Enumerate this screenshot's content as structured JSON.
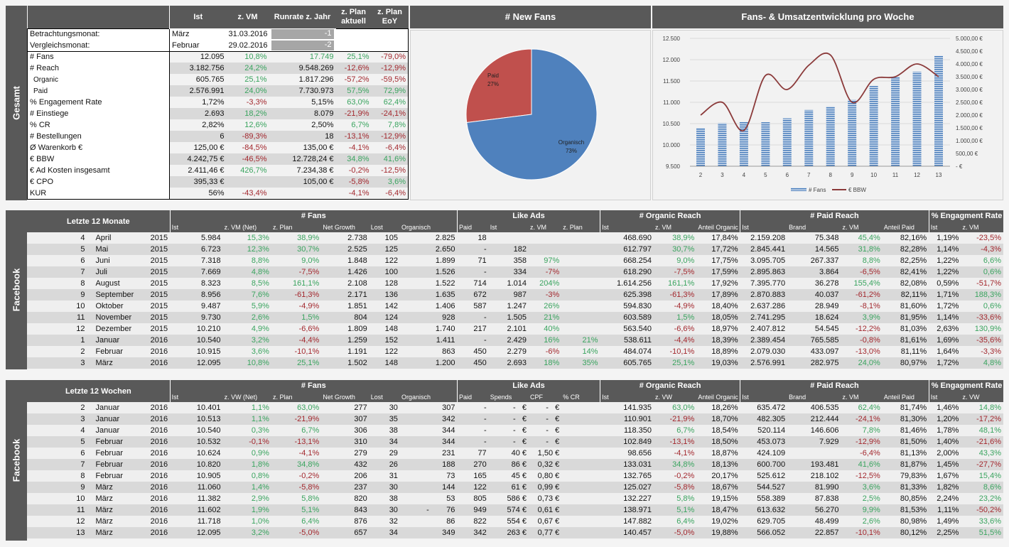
{
  "summary": {
    "side_label": "Gesamt",
    "headers": [
      "Ist",
      "z. VM",
      "Runrate z. Jahr",
      "z. Plan aktuell",
      "z. Plan EoY"
    ],
    "betrachtung": {
      "label": "Betrachtungsmonat:",
      "month": "März",
      "date": "31.03.2016",
      "offset": "-1"
    },
    "vergleich": {
      "label": "Vergleichsmonat:",
      "month": "Februar",
      "date": "29.02.2016",
      "offset": "-2"
    },
    "rows": [
      [
        "# Fans",
        "12.095",
        "10,8%",
        "17.749",
        "25,1%",
        "-79,0%"
      ],
      [
        "# Reach",
        "3.182.756",
        "24,2%",
        "9.548.269",
        "-12,6%",
        "-12,9%"
      ],
      [
        "Organic",
        "605.765",
        "25,1%",
        "1.817.296",
        "-57,2%",
        "-59,5%"
      ],
      [
        "Paid",
        "2.576.991",
        "24,0%",
        "7.730.973",
        "57,5%",
        "72,9%"
      ],
      [
        "% Engagement Rate",
        "1,72%",
        "-3,3%",
        "5,15%",
        "63,0%",
        "62,4%"
      ],
      [
        "# Einstiege",
        "2.693",
        "18,2%",
        "8.079",
        "-21,9%",
        "-24,1%"
      ],
      [
        "% CR",
        "2,82%",
        "12,6%",
        "2,50%",
        "6,7%",
        "7,8%"
      ],
      [
        "# Bestellungen",
        "6",
        "-89,3%",
        "18",
        "-13,1%",
        "-12,9%"
      ],
      [
        "Ø Warenkorb €",
        "125,00 €",
        "-84,5%",
        "135,00 €",
        "-4,1%",
        "-6,4%"
      ],
      [
        "€ BBW",
        "4.242,75 €",
        "-46,5%",
        "12.728,24 €",
        "34,8%",
        "41,6%"
      ],
      [
        "€ Ad Kosten insgesamt",
        "2.411,46 €",
        "426,7%",
        "7.234,38 €",
        "-0,2%",
        "-12,5%"
      ],
      [
        "€ CPO",
        "395,33 €",
        "",
        "105,00 €",
        "-5,8%",
        "3,6%"
      ],
      [
        "KUR",
        "56%",
        "-43,4%",
        "",
        "-4,1%",
        "-6,4%"
      ]
    ]
  },
  "pie": {
    "title": "# New Fans",
    "slices": [
      {
        "label": "Paid",
        "value": 27,
        "pct": "27%",
        "color": "#c0504d"
      },
      {
        "label": "Organisch",
        "value": 73,
        "pct": "73%",
        "color": "#4f81bd"
      }
    ]
  },
  "chart_data": {
    "type": "bar+line",
    "title": "Fans- & Umsatzentwicklung pro Woche",
    "categories": [
      "2",
      "3",
      "4",
      "5",
      "6",
      "7",
      "8",
      "9",
      "10",
      "11",
      "12",
      "13"
    ],
    "series": [
      {
        "name": "# Fans",
        "type": "bar",
        "axis": "left",
        "color": "#4f81bd",
        "values": [
          10401,
          10513,
          10540,
          10532,
          10624,
          10820,
          10905,
          11060,
          11382,
          11602,
          11718,
          12095
        ]
      },
      {
        "name": "€ BBW",
        "type": "line",
        "axis": "right",
        "color": "#8b3a3a",
        "values": [
          2000,
          2500,
          1400,
          3550,
          3000,
          3950,
          4350,
          2500,
          3400,
          3500,
          4000,
          3500
        ]
      }
    ],
    "y_left": {
      "range": [
        9500,
        12500
      ],
      "ticks": [
        "9.500",
        "10.000",
        "10.500",
        "11.000",
        "11.500",
        "12.000",
        "12.500"
      ]
    },
    "y_right": {
      "range": [
        0,
        5000
      ],
      "ticks": [
        "-   €",
        "500,00 €",
        "1.000,00 €",
        "1.500,00 €",
        "2.000,00 €",
        "2.500,00 €",
        "3.000,00 €",
        "3.500,00 €",
        "4.000,00 €",
        "4.500,00 €",
        "5.000,00 €"
      ]
    },
    "grid": true,
    "legend": "bottom"
  },
  "monthly": {
    "side_label": "Facebook",
    "title": "Letzte 12 Monate",
    "groups": [
      "# Fans",
      "Like Ads",
      "# Organic Reach",
      "# Paid Reach",
      "% Engagment Rate"
    ],
    "subheaders": [
      "Ist",
      "z. VM (Net)",
      "z. Plan",
      "Net Growth",
      "Lost",
      "Organisch",
      "Paid",
      "Ist",
      "z. VM",
      "z. Plan",
      "Ist",
      "z. VM",
      "Anteil Organic",
      "Ist",
      "Brand",
      "z. VM",
      "Anteil Paid",
      "Ist",
      "z. VM"
    ],
    "rows": [
      [
        "4",
        "April",
        "2015",
        "5.984",
        "15,3%",
        "38,9%",
        "2.738",
        "105",
        "2.825",
        "18",
        "",
        "",
        "",
        "468.690",
        "38,9%",
        "17,84%",
        "2.159.208",
        "75.348",
        "45,4%",
        "82,16%",
        "1,19%",
        "-23,5%"
      ],
      [
        "5",
        "Mai",
        "2015",
        "6.723",
        "12,3%",
        "30,7%",
        "2.525",
        "125",
        "2.650",
        "-",
        "182",
        "",
        "",
        "612.797",
        "30,7%",
        "17,72%",
        "2.845.441",
        "14.565",
        "31,8%",
        "82,28%",
        "1,14%",
        "-4,3%"
      ],
      [
        "6",
        "Juni",
        "2015",
        "7.318",
        "8,8%",
        "9,0%",
        "1.848",
        "122",
        "1.899",
        "71",
        "358",
        "97%",
        "",
        "668.254",
        "9,0%",
        "17,75%",
        "3.095.705",
        "267.337",
        "8,8%",
        "82,25%",
        "1,22%",
        "6,6%"
      ],
      [
        "7",
        "Juli",
        "2015",
        "7.669",
        "4,8%",
        "-7,5%",
        "1.426",
        "100",
        "1.526",
        "-",
        "334",
        "-7%",
        "",
        "618.290",
        "-7,5%",
        "17,59%",
        "2.895.863",
        "3.864",
        "-6,5%",
        "82,41%",
        "1,22%",
        "0,6%"
      ],
      [
        "8",
        "August",
        "2015",
        "8.323",
        "8,5%",
        "161,1%",
        "2.108",
        "128",
        "1.522",
        "714",
        "1.014",
        "204%",
        "",
        "1.614.256",
        "161,1%",
        "17,92%",
        "7.395.770",
        "36.278",
        "155,4%",
        "82,08%",
        "0,59%",
        "-51,7%"
      ],
      [
        "9",
        "September",
        "2015",
        "8.956",
        "7,6%",
        "-61,3%",
        "2.171",
        "136",
        "1.635",
        "672",
        "987",
        "-3%",
        "",
        "625.398",
        "-61,3%",
        "17,89%",
        "2.870.883",
        "40.037",
        "-61,2%",
        "82,11%",
        "1,71%",
        "188,3%"
      ],
      [
        "10",
        "Oktober",
        "2015",
        "9.487",
        "5,9%",
        "-4,9%",
        "1.851",
        "142",
        "1.406",
        "587",
        "1.247",
        "26%",
        "",
        "594.830",
        "-4,9%",
        "18,40%",
        "2.637.286",
        "28.949",
        "-8,1%",
        "81,60%",
        "1,72%",
        "0,6%"
      ],
      [
        "11",
        "November",
        "2015",
        "9.730",
        "2,6%",
        "1,5%",
        "804",
        "124",
        "928",
        "-",
        "1.505",
        "21%",
        "",
        "603.589",
        "1,5%",
        "18,05%",
        "2.741.295",
        "18.624",
        "3,9%",
        "81,95%",
        "1,14%",
        "-33,6%"
      ],
      [
        "12",
        "Dezember",
        "2015",
        "10.210",
        "4,9%",
        "-6,6%",
        "1.809",
        "148",
        "1.740",
        "217",
        "2.101",
        "40%",
        "",
        "563.540",
        "-6,6%",
        "18,97%",
        "2.407.812",
        "54.545",
        "-12,2%",
        "81,03%",
        "2,63%",
        "130,9%"
      ],
      [
        "1",
        "Januar",
        "2016",
        "10.540",
        "3,2%",
        "-4,4%",
        "1.259",
        "152",
        "1.411",
        "-",
        "2.429",
        "16%",
        "21%",
        "538.611",
        "-4,4%",
        "18,39%",
        "2.389.454",
        "765.585",
        "-0,8%",
        "81,61%",
        "1,69%",
        "-35,6%"
      ],
      [
        "2",
        "Februar",
        "2016",
        "10.915",
        "3,6%",
        "-10,1%",
        "1.191",
        "122",
        "863",
        "450",
        "2.279",
        "-6%",
        "14%",
        "484.074",
        "-10,1%",
        "18,89%",
        "2.079.030",
        "433.097",
        "-13,0%",
        "81,11%",
        "1,64%",
        "-3,3%"
      ],
      [
        "3",
        "März",
        "2016",
        "12.095",
        "10,8%",
        "25,1%",
        "1.502",
        "148",
        "1.200",
        "450",
        "2.693",
        "18%",
        "35%",
        "605.765",
        "25,1%",
        "19,03%",
        "2.576.991",
        "282.975",
        "24,0%",
        "80,97%",
        "1,72%",
        "4,8%"
      ]
    ]
  },
  "weekly": {
    "side_label": "Facebook",
    "title": "Letzte 12 Wochen",
    "groups": [
      "# Fans",
      "Like Ads",
      "# Organic Reach",
      "# Paid Reach",
      "% Engagment Rate"
    ],
    "subheaders": [
      "Ist",
      "z. VW (Net)",
      "z. Plan",
      "Net Growth",
      "Lost",
      "Organisch",
      "Paid",
      "Spends",
      "CPF",
      "% CR",
      "Ist",
      "z. VW",
      "Anteil Organic",
      "Ist",
      "Brand",
      "z. VM",
      "Anteil Paid",
      "Ist",
      "z. VW"
    ],
    "rows": [
      [
        "2",
        "Januar",
        "2016",
        "10.401",
        "1,1%",
        "63,0%",
        "277",
        "30",
        "307",
        "-",
        "-   €",
        "-   €",
        "",
        "141.935",
        "63,0%",
        "18,26%",
        "635.472",
        "406.535",
        "62,4%",
        "81,74%",
        "1,46%",
        "14,8%"
      ],
      [
        "3",
        "Januar",
        "2016",
        "10.513",
        "1,1%",
        "-21,9%",
        "307",
        "35",
        "342",
        "-",
        "-   €",
        "-   €",
        "",
        "110.901",
        "-21,9%",
        "18,70%",
        "482.305",
        "212.444",
        "-24,1%",
        "81,30%",
        "1,20%",
        "-17,2%"
      ],
      [
        "4",
        "Januar",
        "2016",
        "10.540",
        "0,3%",
        "6,7%",
        "306",
        "38",
        "344",
        "-",
        "-   €",
        "-   €",
        "",
        "118.350",
        "6,7%",
        "18,54%",
        "520.114",
        "146.606",
        "7,8%",
        "81,46%",
        "1,78%",
        "48,1%"
      ],
      [
        "5",
        "Februar",
        "2016",
        "10.532",
        "-0,1%",
        "-13,1%",
        "310",
        "34",
        "344",
        "-",
        "-   €",
        "-   €",
        "",
        "102.849",
        "-13,1%",
        "18,50%",
        "453.073",
        "7.929",
        "-12,9%",
        "81,50%",
        "1,40%",
        "-21,6%"
      ],
      [
        "6",
        "Februar",
        "2016",
        "10.624",
        "0,9%",
        "-4,1%",
        "279",
        "29",
        "231",
        "77",
        "40 €",
        "1,50 €",
        "",
        "98.656",
        "-4,1%",
        "18,87%",
        "424.109",
        "",
        "-6,4%",
        "81,13%",
        "2,00%",
        "43,3%"
      ],
      [
        "7",
        "Februar",
        "2016",
        "10.820",
        "1,8%",
        "34,8%",
        "432",
        "26",
        "188",
        "270",
        "86 €",
        "0,32 €",
        "",
        "133.031",
        "34,8%",
        "18,13%",
        "600.700",
        "193.481",
        "41,6%",
        "81,87%",
        "1,45%",
        "-27,7%"
      ],
      [
        "8",
        "Februar",
        "2016",
        "10.905",
        "0,8%",
        "-0,2%",
        "206",
        "31",
        "73",
        "165",
        "45 €",
        "0,80 €",
        "",
        "132.765",
        "-0,2%",
        "20,17%",
        "525.612",
        "218.102",
        "-12,5%",
        "79,83%",
        "1,67%",
        "15,4%"
      ],
      [
        "9",
        "März",
        "2016",
        "11.060",
        "1,4%",
        "-5,8%",
        "237",
        "30",
        "144",
        "122",
        "61 €",
        "0,99 €",
        "",
        "125.027",
        "-5,8%",
        "18,67%",
        "544.527",
        "81.990",
        "3,6%",
        "81,33%",
        "1,82%",
        "8,6%"
      ],
      [
        "10",
        "März",
        "2016",
        "11.382",
        "2,9%",
        "5,8%",
        "820",
        "38",
        "53",
        "805",
        "586 €",
        "0,73 €",
        "",
        "132.227",
        "5,8%",
        "19,15%",
        "558.389",
        "87.838",
        "2,5%",
        "80,85%",
        "2,24%",
        "23,2%"
      ],
      [
        "11",
        "März",
        "2016",
        "11.602",
        "1,9%",
        "5,1%",
        "843",
        "30",
        "-        76",
        "949",
        "574 €",
        "0,61 €",
        "",
        "138.971",
        "5,1%",
        "18,47%",
        "613.632",
        "56.270",
        "9,9%",
        "81,53%",
        "1,11%",
        "-50,2%"
      ],
      [
        "12",
        "März",
        "2016",
        "11.718",
        "1,0%",
        "6,4%",
        "876",
        "32",
        "86",
        "822",
        "554 €",
        "0,67 €",
        "",
        "147.882",
        "6,4%",
        "19,02%",
        "629.705",
        "48.499",
        "2,6%",
        "80,98%",
        "1,49%",
        "33,6%"
      ],
      [
        "13",
        "März",
        "2016",
        "12.095",
        "3,2%",
        "-5,0%",
        "657",
        "34",
        "349",
        "342",
        "263 €",
        "0,77 €",
        "",
        "140.457",
        "-5,0%",
        "19,88%",
        "566.052",
        "22.857",
        "-10,1%",
        "80,12%",
        "2,25%",
        "51,5%"
      ]
    ]
  }
}
